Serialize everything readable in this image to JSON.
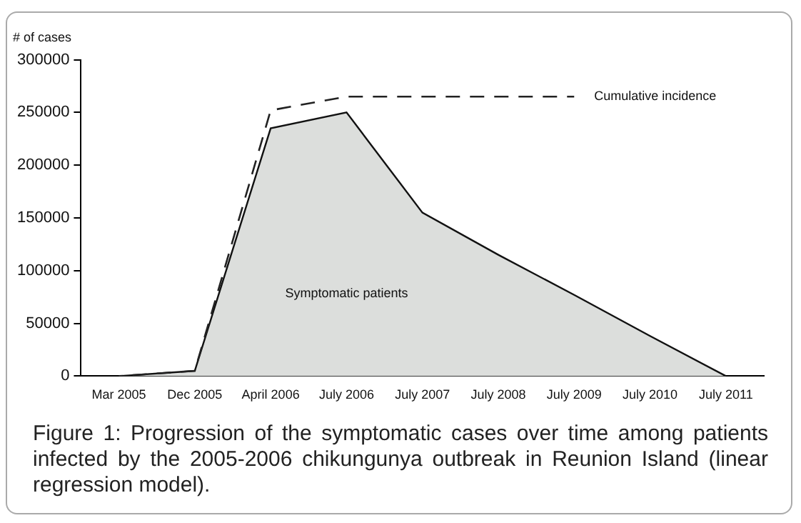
{
  "chart_data": {
    "type": "area",
    "ylabel": "# of cases",
    "categories": [
      "Mar 2005",
      "Dec 2005",
      "April 2006",
      "July 2006",
      "July 2007",
      "July 2008",
      "July 2009",
      "July 2010",
      "July 2011"
    ],
    "series": [
      {
        "name": "Symptomatic patients",
        "color": "#dcdedc",
        "values": [
          0,
          5000,
          235000,
          250000,
          155000,
          115000,
          77000,
          38000,
          0
        ]
      },
      {
        "name": "Cumulative incidence",
        "type": "line",
        "color": "#222222",
        "line_style": "dashed",
        "values": [
          0,
          5000,
          252000,
          265000,
          265000,
          265000,
          265000,
          null,
          null
        ]
      }
    ],
    "ylim": [
      0,
      300000
    ],
    "yticks": [
      0,
      50000,
      100000,
      150000,
      200000,
      250000,
      300000
    ],
    "grid": false,
    "legend": false,
    "annotations": [
      "Figure 1: Progression of the symptomatic cases over time among patients infected by the 2005-2006 chikungunya outbreak in Reunion Island (linear regression model)."
    ]
  }
}
